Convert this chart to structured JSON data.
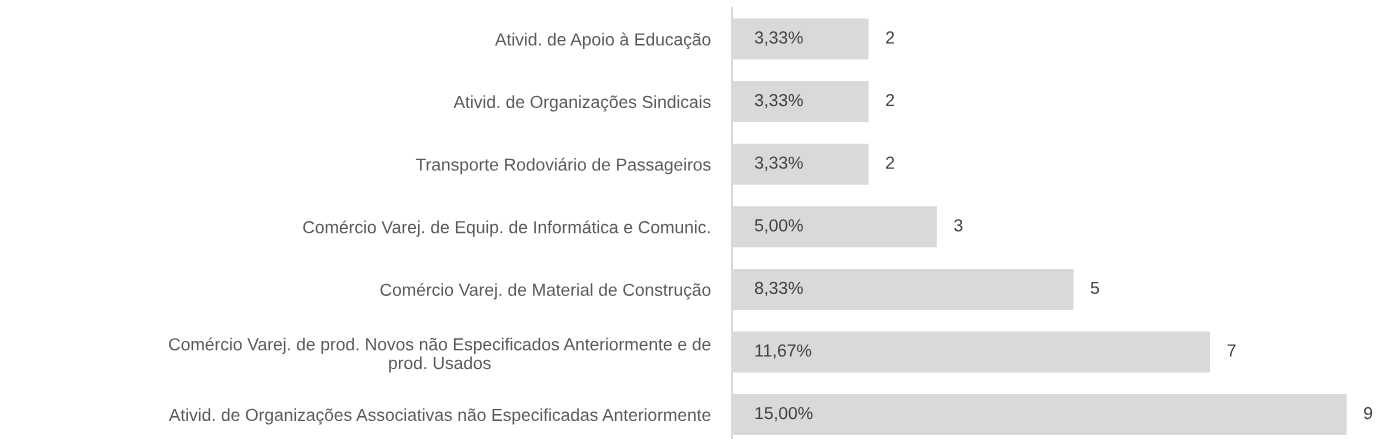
{
  "chart_data": {
    "type": "bar",
    "orientation": "horizontal",
    "categories": [
      "Ativid. de Apoio à Educação",
      "Ativid. de Organizações Sindicais",
      "Transporte Rodoviário de Passageiros",
      "Comércio Varej. de Equip. de Informática e Comunic.",
      "Comércio Varej. de Material de Construção",
      "Comércio Varej. de prod. Novos não Especificados Anteriormente e de\nprod. Usados",
      "Ativid. de Organizações Associativas não Especificadas Anteriormente"
    ],
    "values": [
      2,
      2,
      2,
      3,
      5,
      7,
      9
    ],
    "color": "#d9d9d9",
    "annotations": [
      "3,33%",
      "3,33%",
      "3,33%",
      "5,00%",
      "8,33%",
      "11,67%",
      "15,00%"
    ],
    "data_labels": true,
    "tick_labels": "y",
    "grid": false,
    "legend": false
  }
}
